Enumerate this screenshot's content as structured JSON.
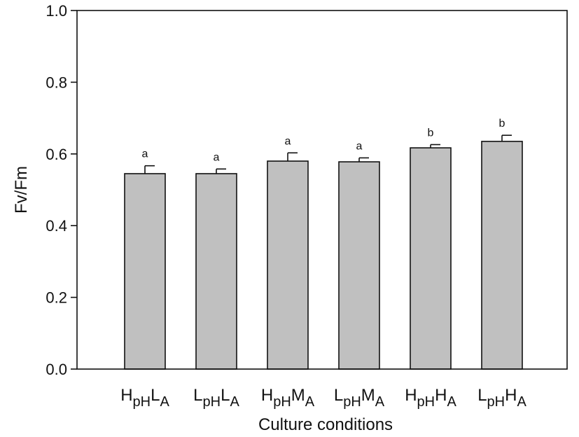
{
  "chart_data": {
    "type": "bar",
    "xlabel": "Culture conditions",
    "ylabel": "Fv/Fm",
    "ylim": [
      0,
      1.0
    ],
    "yticks": [
      "0.0",
      "0.2",
      "0.4",
      "0.6",
      "0.8",
      "1.0"
    ],
    "grid": false,
    "bar_color": "#c0c0c0",
    "categories": [
      {
        "parts": [
          [
            "H",
            "base"
          ],
          [
            "pH",
            "sub"
          ],
          [
            "L",
            "base"
          ],
          [
            "A",
            "sub"
          ]
        ]
      },
      {
        "parts": [
          [
            "L",
            "base"
          ],
          [
            "pH",
            "sub"
          ],
          [
            "L",
            "base"
          ],
          [
            "A",
            "sub"
          ]
        ]
      },
      {
        "parts": [
          [
            "H",
            "base"
          ],
          [
            "pH",
            "sub"
          ],
          [
            "M",
            "base"
          ],
          [
            "A",
            "sub"
          ]
        ]
      },
      {
        "parts": [
          [
            "L",
            "base"
          ],
          [
            "pH",
            "sub"
          ],
          [
            "M",
            "base"
          ],
          [
            "A",
            "sub"
          ]
        ]
      },
      {
        "parts": [
          [
            "H",
            "base"
          ],
          [
            "pH",
            "sub"
          ],
          [
            "H",
            "base"
          ],
          [
            "A",
            "sub"
          ]
        ]
      },
      {
        "parts": [
          [
            "L",
            "base"
          ],
          [
            "pH",
            "sub"
          ],
          [
            "H",
            "base"
          ],
          [
            "A",
            "sub"
          ]
        ]
      }
    ],
    "values": [
      0.545,
      0.545,
      0.58,
      0.578,
      0.617,
      0.635
    ],
    "errors": [
      0.022,
      0.013,
      0.023,
      0.011,
      0.009,
      0.017
    ],
    "significance": [
      "a",
      "a",
      "a",
      "a",
      "b",
      "b"
    ]
  }
}
